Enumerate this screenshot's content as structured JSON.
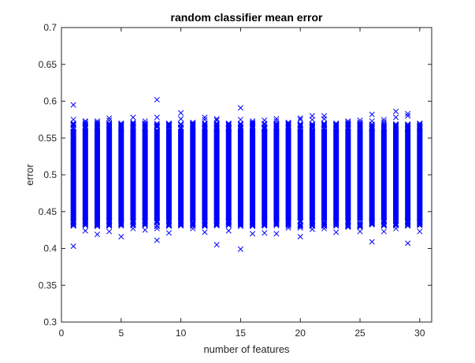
{
  "chart_data": {
    "type": "scatter",
    "title": "random classifier mean error",
    "xlabel": "number of features",
    "ylabel": "error",
    "xlim": [
      0,
      31
    ],
    "ylim": [
      0.3,
      0.7
    ],
    "xticks": [
      0,
      5,
      10,
      15,
      20,
      25,
      30
    ],
    "yticks": [
      0.3,
      0.35,
      0.4,
      0.45,
      0.5,
      0.55,
      0.6,
      0.65,
      0.7
    ],
    "grid": false,
    "legend": "none",
    "marker": "x",
    "color": "#0000ff",
    "series": [
      {
        "x": [
          1,
          1,
          1,
          1,
          2,
          2,
          2,
          2,
          3,
          3,
          3,
          3,
          4,
          4,
          4,
          4,
          5,
          5,
          5,
          5,
          6,
          6,
          6,
          6,
          7,
          7,
          7,
          7,
          8,
          8,
          8,
          8,
          9,
          9,
          9,
          9,
          10,
          10,
          10,
          10,
          11,
          11,
          11,
          11,
          12,
          12,
          12,
          12,
          13,
          13,
          13,
          13,
          14,
          14,
          14,
          14,
          15,
          15,
          15,
          15,
          16,
          16,
          16,
          16,
          17,
          17,
          17,
          17,
          18,
          18,
          18,
          18,
          19,
          19,
          19,
          19,
          20,
          20,
          20,
          20,
          21,
          21,
          21,
          21,
          22,
          22,
          22,
          22,
          23,
          23,
          23,
          23,
          24,
          24,
          24,
          24,
          25,
          25,
          25,
          25,
          26,
          26,
          26,
          26,
          27,
          27,
          27,
          27,
          28,
          28,
          28,
          28,
          29,
          29,
          29,
          29,
          30,
          30,
          30,
          30
        ],
        "y": [
          0.595,
          0.575,
          0.435,
          0.403,
          0.573,
          0.572,
          0.436,
          0.424,
          0.573,
          0.571,
          0.43,
          0.419,
          0.577,
          0.574,
          0.432,
          0.423,
          0.569,
          0.567,
          0.438,
          0.416,
          0.578,
          0.571,
          0.436,
          0.427,
          0.573,
          0.57,
          0.437,
          0.425,
          0.602,
          0.578,
          0.427,
          0.411,
          0.569,
          0.567,
          0.44,
          0.421,
          0.584,
          0.576,
          0.437,
          0.431,
          0.571,
          0.569,
          0.436,
          0.427,
          0.578,
          0.575,
          0.431,
          0.422,
          0.576,
          0.574,
          0.432,
          0.405,
          0.57,
          0.568,
          0.438,
          0.424,
          0.591,
          0.575,
          0.431,
          0.399,
          0.573,
          0.571,
          0.436,
          0.42,
          0.574,
          0.569,
          0.432,
          0.421,
          0.576,
          0.573,
          0.437,
          0.42,
          0.571,
          0.568,
          0.434,
          0.428,
          0.577,
          0.575,
          0.428,
          0.416,
          0.58,
          0.575,
          0.436,
          0.426,
          0.58,
          0.576,
          0.432,
          0.427,
          0.567,
          0.564,
          0.436,
          0.422,
          0.573,
          0.571,
          0.43,
          0.429,
          0.574,
          0.571,
          0.429,
          0.423,
          0.582,
          0.573,
          0.438,
          0.409,
          0.575,
          0.572,
          0.439,
          0.423,
          0.586,
          0.578,
          0.439,
          0.427,
          0.583,
          0.58,
          0.436,
          0.407,
          0.569,
          0.566,
          0.434,
          0.423
        ]
      }
    ],
    "dense_band": {
      "low": 0.438,
      "high": 0.562
    }
  }
}
